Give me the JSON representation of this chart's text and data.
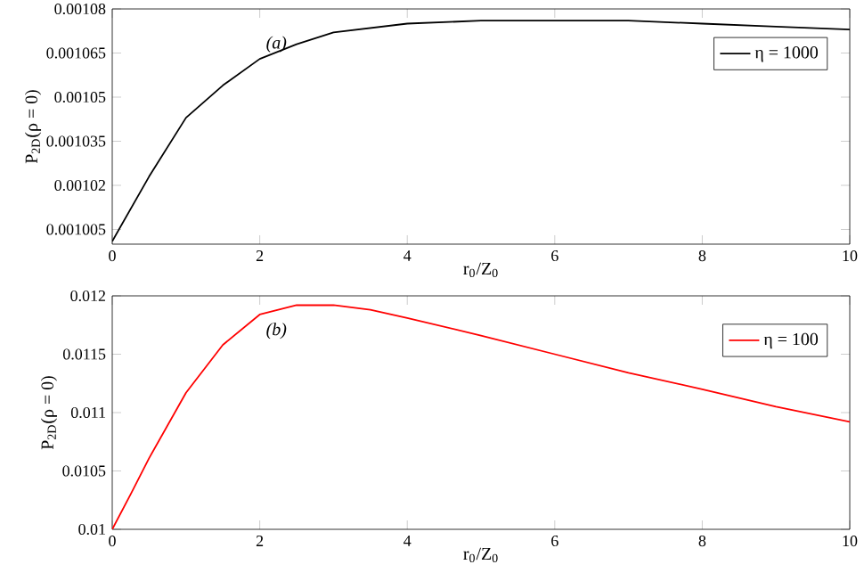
{
  "chart_data": [
    {
      "type": "line",
      "xlabel": "r$_{0}$/Z$_{0}$",
      "ylabel": "P$_{2D}$(ρ = 0)",
      "annotations": [
        "(a)"
      ],
      "legend": "top right",
      "xlim": [
        0,
        10
      ],
      "xticks": [
        0,
        2,
        4,
        6,
        8,
        10
      ],
      "ylim": [
        0.001,
        0.00108
      ],
      "yticks": [
        0.001005,
        0.00102,
        0.001035,
        0.00105,
        0.001065,
        0.00108
      ],
      "x": [
        0,
        0.5,
        1,
        1.5,
        2,
        2.5,
        3,
        4,
        5,
        6,
        7,
        8,
        9,
        10
      ],
      "series": [
        {
          "name": "η = 1000",
          "color": "#000000",
          "values": [
            0.001001,
            0.001023,
            0.001043,
            0.001054,
            0.001063,
            0.001068,
            0.001072,
            0.001075,
            0.001076,
            0.001076,
            0.001076,
            0.001075,
            0.001074,
            0.001073
          ]
        }
      ]
    },
    {
      "type": "line",
      "xlabel": "r$_{0}$/Z$_{0}$",
      "ylabel": "P$_{2D}$(ρ = 0)",
      "annotations": [
        "(b)"
      ],
      "legend": "top right",
      "xlim": [
        0,
        10
      ],
      "xticks": [
        0,
        2,
        4,
        6,
        8,
        10
      ],
      "ylim": [
        0.01,
        0.012
      ],
      "yticks": [
        0.01,
        0.0105,
        0.011,
        0.0115,
        0.012
      ],
      "x": [
        0,
        0.25,
        0.5,
        1,
        1.5,
        2,
        2.5,
        3,
        3.5,
        4,
        5,
        6,
        7,
        8,
        9,
        10
      ],
      "series": [
        {
          "name": "η = 100",
          "color": "#ff0000",
          "values": [
            0.01,
            0.0103,
            0.01061,
            0.01117,
            0.01158,
            0.01184,
            0.01192,
            0.01192,
            0.01188,
            0.01181,
            0.01166,
            0.0115,
            0.01134,
            0.0112,
            0.01105,
            0.01092
          ]
        }
      ]
    }
  ]
}
